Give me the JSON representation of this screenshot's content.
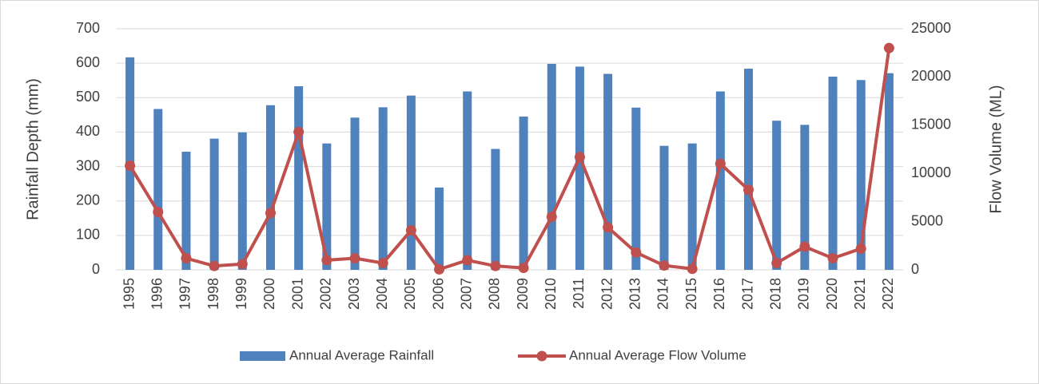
{
  "chart_data": {
    "type": "bar-line",
    "ylabel": "Rainfall Depth (mm)",
    "y2label": "Flow Volume (ML)",
    "categories": [
      "1995",
      "1996",
      "1997",
      "1998",
      "1999",
      "2000",
      "2001",
      "2002",
      "2003",
      "2004",
      "2005",
      "2006",
      "2007",
      "2008",
      "2009",
      "2010",
      "2011",
      "2012",
      "2013",
      "2014",
      "2015",
      "2016",
      "2017",
      "2018",
      "2019",
      "2020",
      "2021",
      "2022"
    ],
    "series": [
      {
        "name": "Annual Average Rainfall",
        "type": "bar",
        "color": "#4f81bd",
        "values": [
          617,
          467,
          343,
          381,
          399,
          478,
          533,
          367,
          442,
          472,
          506,
          239,
          518,
          351,
          445,
          598,
          590,
          569,
          471,
          360,
          367,
          518,
          584,
          433,
          421,
          561,
          551,
          571
        ]
      },
      {
        "name": "Annual Average Flow Volume",
        "type": "line",
        "axis": "y2",
        "color": "#c0504d",
        "values": [
          10800,
          6000,
          1200,
          400,
          600,
          5900,
          14300,
          1000,
          1200,
          700,
          4100,
          50,
          1000,
          400,
          200,
          5500,
          11700,
          4400,
          1800,
          450,
          100,
          11000,
          8300,
          700,
          2400,
          1200,
          2200,
          23000
        ]
      }
    ],
    "ylim": [
      0,
      700
    ],
    "yticks": [
      0,
      100,
      200,
      300,
      400,
      500,
      600,
      700
    ],
    "y2lim": [
      0,
      25000
    ],
    "y2ticks": [
      0,
      5000,
      10000,
      15000,
      20000,
      25000
    ],
    "grid": true,
    "legend": "bottom"
  }
}
